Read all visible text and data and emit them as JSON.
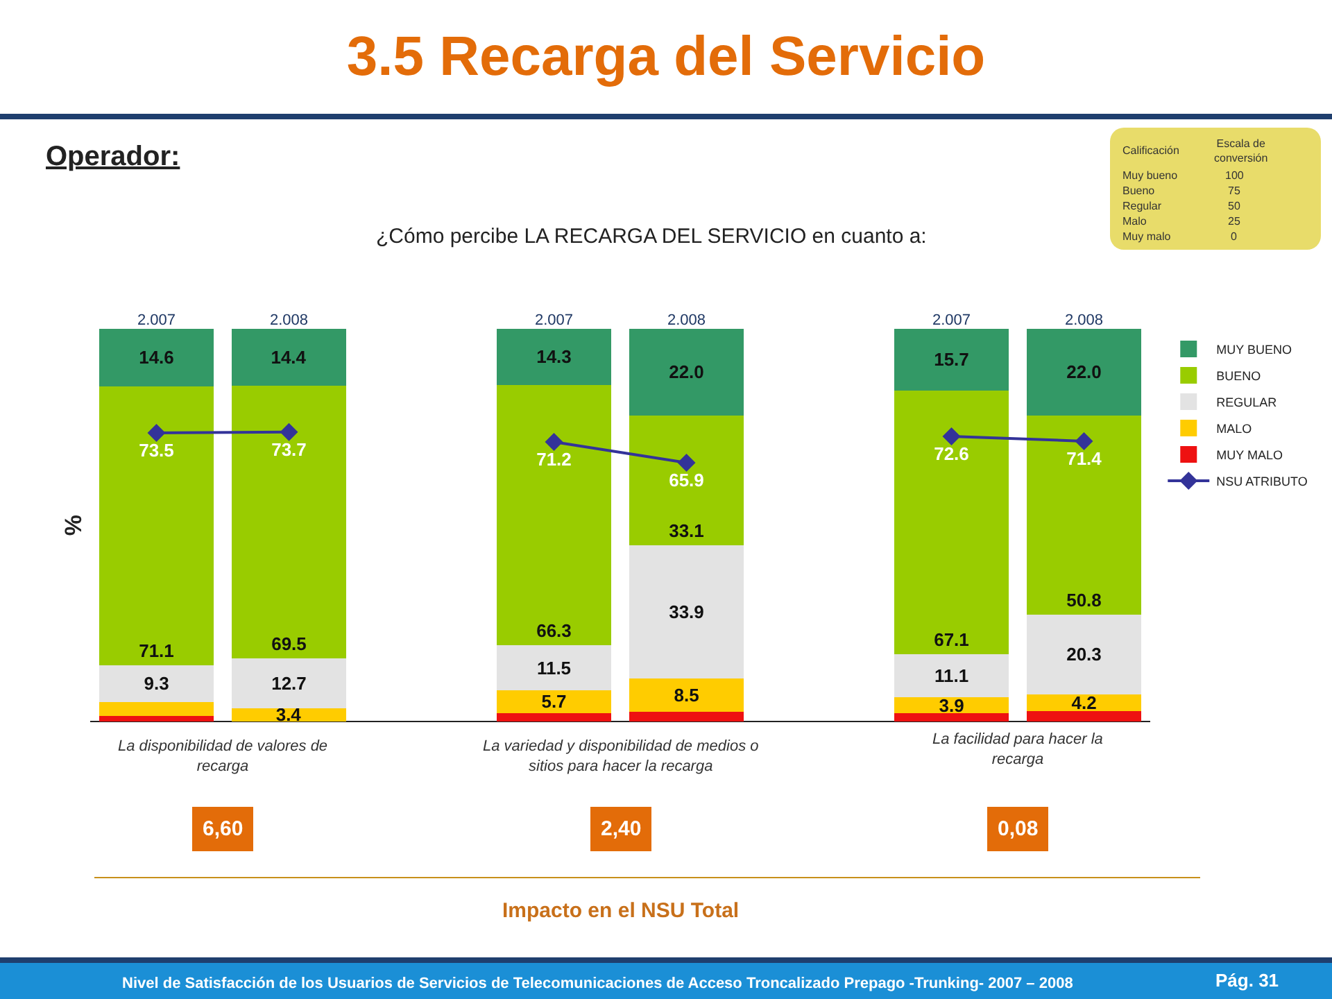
{
  "chart_data": {
    "type": "bar",
    "title": "3.5 Recarga del Servicio",
    "subtitle": "¿Cómo percibe LA RECARGA DEL SERVICIO en cuanto a:",
    "ylabel": "%",
    "categories": [
      "2.007",
      "2.008",
      null,
      "2.007",
      "2.008",
      null,
      "2.007",
      "2.008"
    ],
    "stacked": true,
    "ylim": [
      0,
      100
    ],
    "tick_labels": "x",
    "grid": false,
    "legend": "right",
    "marker": "diamond",
    "line_style": "solid",
    "series": [
      {
        "name": "MUY MALO",
        "color": "#ee1111",
        "values": [
          1.5,
          null,
          null,
          2.2,
          2.5,
          null,
          2.2,
          2.7
        ],
        "value_labels": [
          null,
          null,
          null,
          null,
          null,
          null,
          null,
          null
        ]
      },
      {
        "name": "MALO",
        "color": "#ffcc00",
        "values": [
          3.5,
          3.4,
          null,
          5.7,
          8.5,
          null,
          3.9,
          4.2
        ],
        "value_labels": [
          null,
          "3.4",
          null,
          "5.7",
          "8.5",
          null,
          "3.9",
          "4.2"
        ]
      },
      {
        "name": "REGULAR",
        "color": "#e3e3e3",
        "values": [
          9.3,
          12.7,
          null,
          11.5,
          33.9,
          null,
          11.1,
          20.3
        ],
        "value_labels": [
          "9.3",
          "12.7",
          null,
          "11.5",
          "33.9",
          null,
          "11.1",
          "20.3"
        ]
      },
      {
        "name": "BUENO",
        "color": "#99cc00",
        "values": [
          71.1,
          69.5,
          null,
          66.3,
          33.1,
          null,
          67.1,
          50.8
        ],
        "value_labels": [
          "71.1",
          "69.5",
          null,
          "66.3",
          "33.1",
          null,
          "67.1",
          "50.8"
        ]
      },
      {
        "name": "MUY BUENO",
        "color": "#339966",
        "values": [
          14.6,
          14.4,
          null,
          14.3,
          22.0,
          null,
          15.7,
          22.0
        ],
        "value_labels": [
          "14.6",
          "14.4",
          null,
          "14.3",
          "22.0",
          null,
          "15.7",
          "22.0"
        ]
      },
      {
        "name": "NSU ATRIBUTO",
        "type": "line",
        "color": "#333399",
        "values": [
          73.5,
          73.7,
          null,
          71.2,
          65.9,
          null,
          72.6,
          71.4
        ],
        "value_labels": [
          "73.5",
          "73.7",
          null,
          "71.2",
          "65.9",
          null,
          "72.6",
          "71.4"
        ]
      }
    ],
    "annotations": [
      "Operador:",
      "La disponibilidad  de valores de recarga",
      "La variedad y disponibilidad  de medios o sitios para hacer la recarga",
      "La facilidad para hacer la recarga",
      "6,60",
      "2,40",
      "0,08",
      "Impacto en el NSU Total",
      "Calificación",
      "Escala de conversión",
      "Muy bueno",
      "100",
      "Bueno",
      "75",
      "Regular",
      "50",
      "Malo",
      "25",
      "Muy malo",
      "0",
      "Nivel de Satisfacción de los Usuarios de Servicios de Telecomunicaciones de Acceso Troncalizado Prepago -Trunking- 2007 – 2008",
      "Pág. 31"
    ]
  }
}
